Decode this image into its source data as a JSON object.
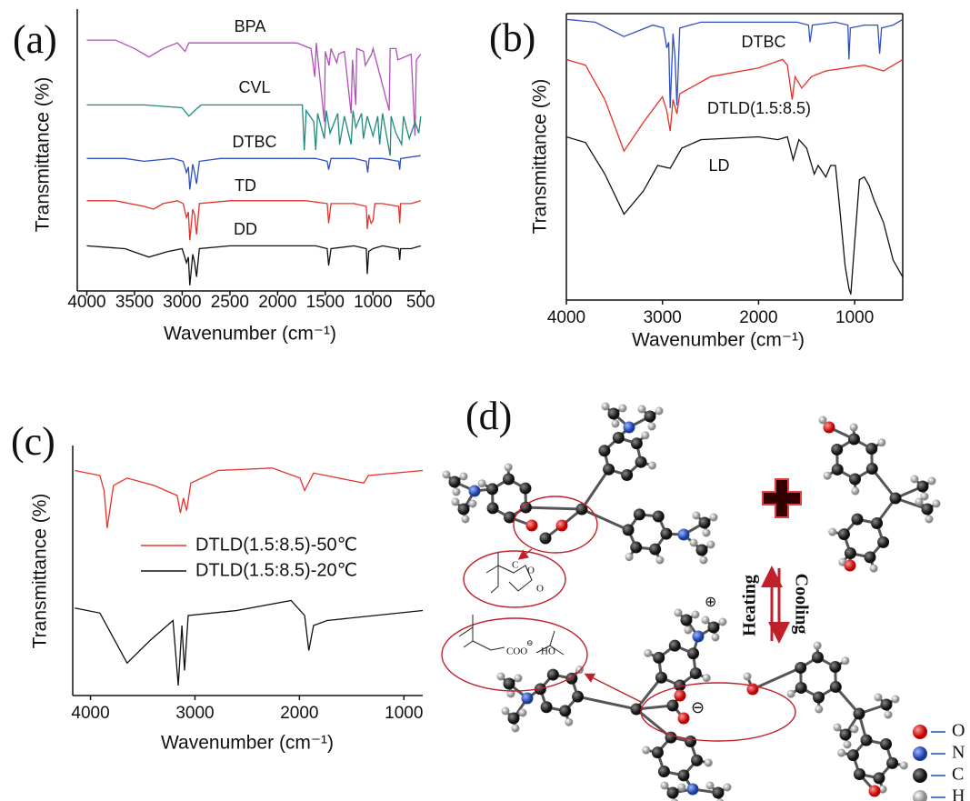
{
  "chart_data": [
    {
      "type": "line",
      "panel_label": "(a)",
      "xlabel": "Wavenumber (cm⁻¹)",
      "ylabel": "Transmittance (%)",
      "xlim": [
        4100,
        450
      ],
      "xticks": [
        4000,
        3500,
        3000,
        2500,
        2000,
        1500,
        1000,
        500
      ],
      "ylim": [
        0,
        100
      ],
      "legend": "inline",
      "frame": false,
      "series": [
        {
          "name": "BPA",
          "color": "#b050b8",
          "x": [
            4000,
            3700,
            3500,
            3350,
            3200,
            3050,
            2970,
            2930,
            2880,
            1800,
            1650,
            1610,
            1595,
            1510,
            1500,
            1460,
            1440,
            1380,
            1360,
            1300,
            1230,
            1215,
            1180,
            1170,
            1100,
            1080,
            1015,
            1000,
            830,
            820,
            760,
            740,
            600,
            560,
            545,
            500
          ],
          "values": [
            89,
            89,
            86,
            83,
            86,
            88,
            85,
            88,
            88,
            88,
            86,
            76,
            88,
            60,
            85,
            80,
            86,
            81,
            84,
            85,
            63,
            82,
            66,
            86,
            85,
            80,
            84,
            86,
            64,
            86,
            86,
            82,
            84,
            55,
            82,
            84
          ]
        },
        {
          "name": "CVL",
          "color": "#1f8a80",
          "x": [
            4000,
            3400,
            3000,
            2930,
            2870,
            2800,
            1800,
            1740,
            1720,
            1700,
            1620,
            1600,
            1580,
            1510,
            1490,
            1450,
            1370,
            1350,
            1300,
            1230,
            1210,
            1180,
            1120,
            1100,
            1060,
            1000,
            950,
            930,
            900,
            820,
            810,
            760,
            700,
            680,
            620,
            560,
            520,
            500
          ],
          "values": [
            66,
            66,
            65,
            62,
            64,
            66,
            66,
            66,
            50,
            64,
            60,
            50,
            63,
            54,
            64,
            56,
            63,
            52,
            62,
            52,
            64,
            58,
            63,
            54,
            62,
            55,
            62,
            52,
            63,
            48,
            62,
            56,
            52,
            62,
            54,
            60,
            56,
            62
          ]
        },
        {
          "name": "DTBC",
          "color": "#3050c0",
          "x": [
            4000,
            3600,
            3400,
            3100,
            2990,
            2955,
            2935,
            2920,
            2890,
            2870,
            2850,
            2820,
            2600,
            1600,
            1480,
            1465,
            1440,
            1200,
            1070,
            1055,
            1040,
            900,
            730,
            720,
            710,
            500
          ],
          "values": [
            47,
            47,
            46,
            47,
            46,
            42,
            44,
            36,
            45,
            42,
            38,
            46,
            47,
            47,
            46,
            43,
            47,
            47,
            46,
            42,
            47,
            47,
            46,
            43,
            47,
            48
          ]
        },
        {
          "name": "TD",
          "color": "#e8302a",
          "x": [
            4000,
            3700,
            3400,
            3300,
            3200,
            3050,
            2990,
            2955,
            2935,
            2920,
            2890,
            2870,
            2850,
            2820,
            2500,
            1700,
            1480,
            1465,
            1440,
            1200,
            1070,
            1060,
            1045,
            1020,
            1000,
            980,
            900,
            730,
            720,
            710,
            600,
            500
          ],
          "values": [
            32,
            32,
            30,
            29,
            31,
            32,
            31,
            26,
            28,
            18,
            29,
            27,
            20,
            31,
            32,
            32,
            31,
            24,
            31,
            31,
            30,
            22,
            27,
            24,
            25,
            31,
            31,
            30,
            24,
            31,
            31,
            32
          ]
        },
        {
          "name": "DD",
          "color": "#111111",
          "x": [
            4000,
            3600,
            3350,
            3150,
            3000,
            2955,
            2935,
            2920,
            2890,
            2870,
            2850,
            2820,
            2500,
            1600,
            1480,
            1465,
            1440,
            1200,
            1070,
            1060,
            1045,
            1000,
            900,
            730,
            720,
            710,
            600,
            500
          ],
          "values": [
            16,
            15,
            12,
            14,
            15,
            10,
            12,
            2,
            13,
            10,
            5,
            15,
            16,
            16,
            15,
            9,
            15,
            16,
            15,
            6,
            14,
            15,
            16,
            15,
            11,
            15,
            15,
            16
          ]
        }
      ]
    },
    {
      "type": "line",
      "panel_label": "(b)",
      "xlabel": "Wavenumber (cm⁻¹)",
      "ylabel": "Transmittance (%)",
      "xlim": [
        4000,
        500
      ],
      "xticks": [
        4000,
        3000,
        2000,
        1000
      ],
      "ylim": [
        0,
        100
      ],
      "legend": "inline",
      "frame": true,
      "series": [
        {
          "name": "DTBC",
          "color": "#3050c0",
          "x": [
            4000,
            3700,
            3400,
            3100,
            2990,
            2955,
            2935,
            2920,
            2890,
            2870,
            2850,
            2820,
            2600,
            1600,
            1480,
            1465,
            1440,
            1200,
            1070,
            1060,
            1045,
            900,
            760,
            740,
            720,
            600,
            500
          ],
          "values": [
            98,
            97,
            92,
            96,
            95,
            88,
            90,
            67,
            93,
            85,
            68,
            95,
            97,
            97,
            96,
            90,
            96,
            97,
            96,
            84,
            95,
            96,
            96,
            86,
            95,
            96,
            98
          ]
        },
        {
          "name": "DTLD(1.5:8.5)",
          "color": "#e8302a",
          "x": [
            4000,
            3800,
            3600,
            3400,
            3200,
            3000,
            2955,
            2920,
            2890,
            2850,
            2820,
            2500,
            2000,
            1750,
            1700,
            1650,
            1620,
            1550,
            1500,
            1450,
            1300,
            1100,
            900,
            700,
            500
          ],
          "values": [
            84,
            82,
            70,
            52,
            62,
            71,
            66,
            59,
            70,
            65,
            72,
            78,
            81,
            84,
            82,
            70,
            78,
            74,
            76,
            78,
            80,
            81,
            82,
            80,
            84
          ]
        },
        {
          "name": "LD",
          "color": "#111111",
          "x": [
            4000,
            3800,
            3600,
            3400,
            3200,
            3050,
            2920,
            2800,
            2600,
            2000,
            1800,
            1700,
            1640,
            1580,
            1500,
            1420,
            1380,
            1300,
            1250,
            1200,
            1150,
            1100,
            1060,
            1040,
            1000,
            950,
            900,
            850,
            800,
            700,
            600,
            500
          ],
          "values": [
            57,
            55,
            44,
            30,
            38,
            47,
            46,
            53,
            56,
            57,
            56,
            57,
            49,
            56,
            53,
            44,
            47,
            43,
            47,
            47,
            30,
            12,
            4,
            2,
            20,
            42,
            43,
            40,
            35,
            27,
            14,
            8
          ]
        }
      ]
    },
    {
      "type": "line",
      "panel_label": "(c)",
      "xlabel": "Wavenumber (cm⁻¹)",
      "ylabel": "Transmittance (%)",
      "xlim": [
        4170,
        820
      ],
      "xticks": [
        4000,
        3000,
        2000,
        1000
      ],
      "ylim": [
        0,
        100
      ],
      "legend": "center",
      "frame": false,
      "series": [
        {
          "name": "DTLD(1.5:8.5)-50℃",
          "color": "#e8302a",
          "x": [
            4150,
            3910,
            3870,
            3840,
            3780,
            3650,
            3390,
            3170,
            3140,
            3110,
            3080,
            3040,
            2780,
            2260,
            1995,
            1950,
            1865,
            1385,
            1340,
            820
          ],
          "values": [
            90,
            88,
            82,
            67,
            84,
            87,
            84,
            80,
            73,
            79,
            74,
            85,
            90,
            91,
            87,
            82,
            89,
            85,
            88,
            90
          ]
        },
        {
          "name": "DTLD(1.5:8.5)-20℃",
          "color": "#111111",
          "x": [
            4150,
            3910,
            3650,
            3430,
            3210,
            3160,
            3125,
            3100,
            3065,
            2600,
            2080,
            1950,
            1910,
            1865,
            1735,
            820
          ],
          "values": [
            35,
            33,
            13,
            22,
            30,
            4,
            28,
            10,
            32,
            34,
            38,
            32,
            18,
            28,
            30,
            34
          ]
        }
      ]
    }
  ],
  "diagram": {
    "panel_label": "(d)",
    "heating": "Heating",
    "cooling": "Cooling",
    "plus": "⊕",
    "minus": "⊖",
    "inset_top": {
      "carbon": "C",
      "ring_oxygen": "O",
      "carbonyl_oxygen": "O"
    },
    "inset_bottom": {
      "carboxylate": "COO",
      "minus": "⊖",
      "hydroxyl": "HO"
    },
    "legend": [
      "O",
      "N",
      "C",
      "H"
    ]
  }
}
